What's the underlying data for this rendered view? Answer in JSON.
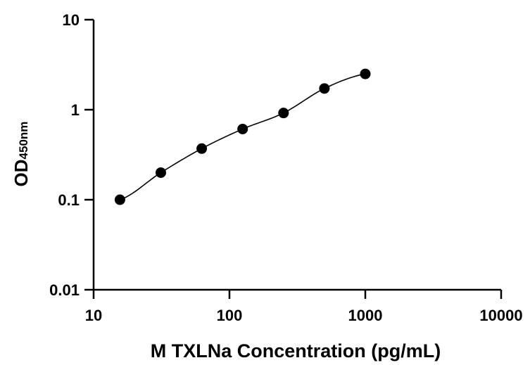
{
  "chart_data": {
    "type": "scatter",
    "title": "",
    "xlabel": "M TXLNa Concentration (pg/mL)",
    "ylabel": {
      "main": "OD",
      "subscript": "450nm"
    },
    "xscale": "log",
    "yscale": "log",
    "xlim": [
      10,
      10000
    ],
    "ylim": [
      0.01,
      10
    ],
    "xticks": [
      10,
      100,
      1000,
      10000
    ],
    "xtick_labels": [
      "10",
      "100",
      "1000",
      "10000"
    ],
    "yticks": [
      0.01,
      0.1,
      1,
      10
    ],
    "ytick_labels": [
      "0.01",
      "0.1",
      "1",
      "10"
    ],
    "grid": false,
    "legend": "none",
    "series": [
      {
        "x": [
          15.625,
          31.25,
          62.5,
          125,
          250,
          500,
          1000
        ],
        "y": [
          0.1,
          0.2,
          0.37,
          0.61,
          0.92,
          1.72,
          2.5
        ],
        "marker": "filled-circle",
        "fit_line": true,
        "color": "#000000"
      }
    ]
  }
}
